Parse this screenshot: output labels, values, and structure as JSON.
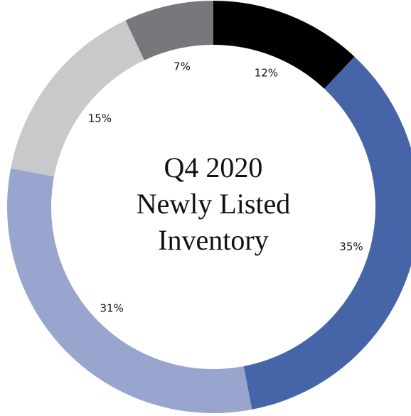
{
  "chart_data": {
    "type": "donut",
    "title": [
      "Q4 2020",
      "Newly Listed",
      "Inventory"
    ],
    "values": [
      12,
      35,
      31,
      15,
      7
    ],
    "value_labels": [
      "12%",
      "35%",
      "31%",
      "15%",
      "7%"
    ],
    "colors": [
      "#000000",
      "#4665a8",
      "#98a5cf",
      "#c8c9cb",
      "#77787b"
    ]
  }
}
